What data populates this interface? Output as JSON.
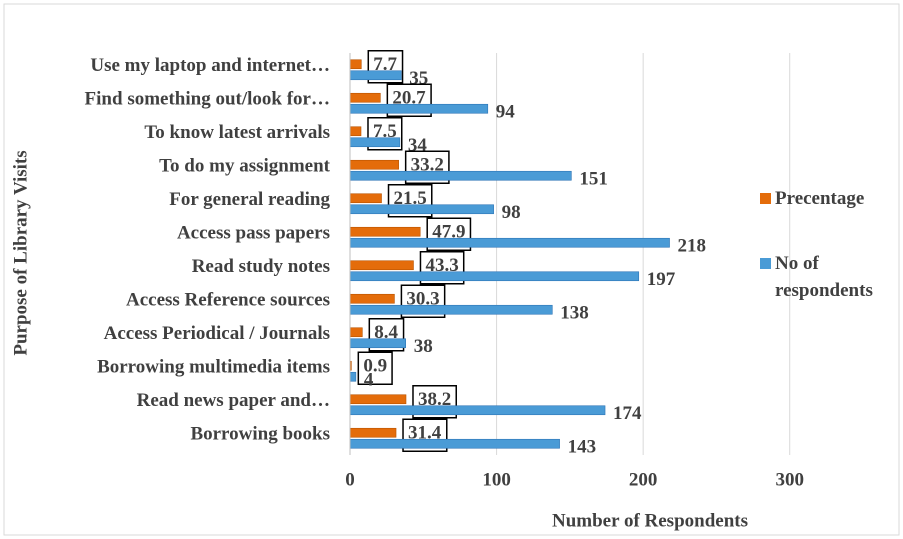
{
  "chart_data": {
    "type": "hbar",
    "x_label": "Number of Respondents",
    "y_label": "Purpose of Library Visits",
    "categories": [
      "Use my laptop and internet…",
      "Find something out/look for…",
      "To know latest arrivals",
      "To do my assignment",
      "For general reading",
      "Access pass papers",
      "Read study notes",
      "Access Reference sources",
      "Access Periodical / Journals",
      "Borrowing multimedia items",
      "Read news paper and…",
      "Borrowing books"
    ],
    "series": [
      {
        "name": "Precentage",
        "color": "#e46c0a",
        "values": [
          7.7,
          20.7,
          7.5,
          33.2,
          21.5,
          47.9,
          43.3,
          30.3,
          8.4,
          0.9,
          38.2,
          31.4
        ]
      },
      {
        "name": "No of respondents",
        "color": "#4a9bd6",
        "values": [
          35,
          94,
          34,
          151,
          98,
          218,
          197,
          138,
          38,
          4,
          174,
          143
        ]
      }
    ],
    "xlim": [
      0,
      350
    ],
    "xticks": [
      0,
      100,
      200,
      300
    ],
    "grid": true,
    "legend": "right"
  }
}
